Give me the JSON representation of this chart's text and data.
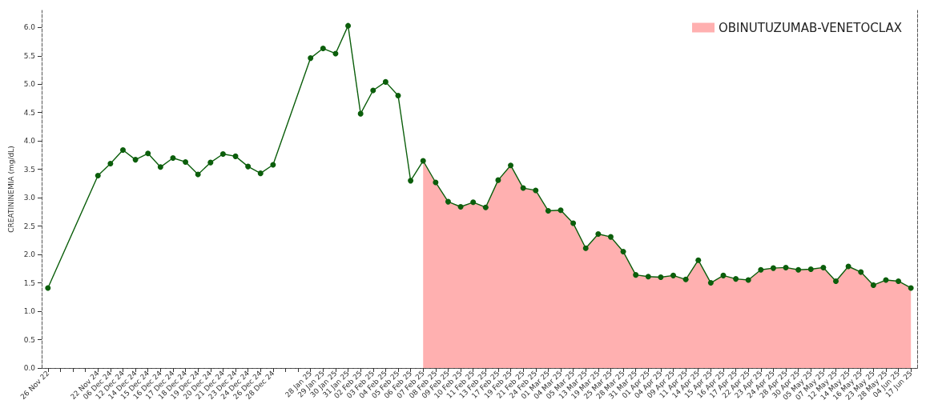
{
  "chart_data": {
    "type": "line",
    "ylabel": "CREATININEMIA (mg/dL)",
    "categories": [
      "26 Nov 22",
      null,
      null,
      null,
      "22 Nov 24",
      "06 Dec 24",
      "12 Dec 24",
      "14 Dec 24",
      "15 Dec 24",
      "16 Dec 24",
      "17 Dec 24",
      "18 Dec 24",
      "19 Dec 24",
      "20 Dec 24",
      "21 Dec 24",
      "23 Dec 24",
      "24 Dec 24",
      "26 Dec 24",
      "28 Dec 24",
      null,
      null,
      "28 Jan 25",
      "29 Jan 25",
      "30 Jan 25",
      "31 Jan 25",
      "02 Feb 25",
      "03 Feb 25",
      "04 Feb 25",
      "05 Feb 25",
      "06 Feb 25",
      "07 Feb 25",
      "08 Feb 25",
      "09 Feb 25",
      "10 Feb 25",
      "11 Feb 25",
      "13 Feb 25",
      "17 Feb 25",
      "19 Feb 25",
      "21 Feb 25",
      "24 Feb 25",
      "01 Mar 25",
      "04 Mar 25",
      "05 Mar 25",
      "13 Mar 25",
      "19 Mar 25",
      "25 Mar 25",
      "28 Mar 25",
      "31 Mar 25",
      "01 Apr 25",
      "04 Apr 25",
      "09 Apr 25",
      "11 Apr 25",
      "14 Apr 25",
      "15 Apr 25",
      "16 Apr 25",
      "17 Apr 25",
      "22 Apr 25",
      "23 Apr 25",
      "24 Apr 25",
      "28 Apr 25",
      "30 Apr 25",
      "05 May 25",
      "07 May 25",
      "12 May 25",
      "14 May 25",
      "16 May 25",
      "23 May 25",
      "28 May 25",
      "04 Jun 25",
      "17 Jun 25"
    ],
    "series": [
      {
        "type": "area",
        "name": "OBINUTUZUMAB-VENETOCLAX",
        "color": "#ffb0b0",
        "values": [
          null,
          null,
          null,
          null,
          null,
          null,
          null,
          null,
          null,
          null,
          null,
          null,
          null,
          null,
          null,
          null,
          null,
          null,
          null,
          null,
          null,
          null,
          null,
          null,
          null,
          null,
          null,
          null,
          null,
          null,
          3.65,
          3.27,
          2.93,
          2.84,
          2.92,
          2.83,
          3.31,
          3.57,
          3.17,
          3.13,
          2.77,
          2.78,
          2.55,
          2.11,
          2.36,
          2.31,
          2.05,
          1.64,
          1.61,
          1.6,
          1.63,
          1.56,
          1.9,
          1.5,
          1.63,
          1.57,
          1.55,
          1.73,
          1.76,
          1.77,
          1.73,
          1.74,
          1.77,
          1.53,
          1.79,
          1.69,
          1.46,
          1.55,
          1.53,
          1.41
        ]
      },
      {
        "color": "#0b5e0b",
        "marker": "circle",
        "values": [
          1.41,
          null,
          null,
          null,
          3.39,
          3.6,
          3.84,
          3.67,
          3.78,
          3.54,
          3.7,
          3.63,
          3.41,
          3.62,
          3.77,
          3.73,
          3.55,
          3.43,
          3.58,
          null,
          null,
          5.46,
          5.63,
          5.54,
          6.03,
          4.48,
          4.89,
          5.04,
          4.8,
          3.3,
          3.65,
          3.27,
          2.93,
          2.84,
          2.92,
          2.83,
          3.31,
          3.57,
          3.17,
          3.13,
          2.77,
          2.78,
          2.55,
          2.11,
          2.36,
          2.31,
          2.05,
          1.64,
          1.61,
          1.6,
          1.63,
          1.56,
          1.9,
          1.5,
          1.63,
          1.57,
          1.55,
          1.73,
          1.76,
          1.77,
          1.73,
          1.74,
          1.77,
          1.53,
          1.79,
          1.69,
          1.46,
          1.55,
          1.53,
          1.41
        ]
      }
    ],
    "ylim": [
      0,
      6.3
    ],
    "yticks": [
      {
        "value": 0,
        "label": "0.0"
      },
      0.5,
      {
        "value": 1,
        "label": "1.0"
      },
      1.5,
      {
        "value": 2,
        "label": "2.0"
      },
      2.5,
      {
        "value": 3,
        "label": "3.0"
      },
      3.5,
      {
        "value": 4,
        "label": "4.0"
      },
      4.5,
      {
        "value": 5,
        "label": "5.0"
      },
      5.5,
      {
        "value": 6,
        "label": "6.0"
      }
    ],
    "grid": false,
    "legend": "top right",
    "line_style": "solid"
  }
}
